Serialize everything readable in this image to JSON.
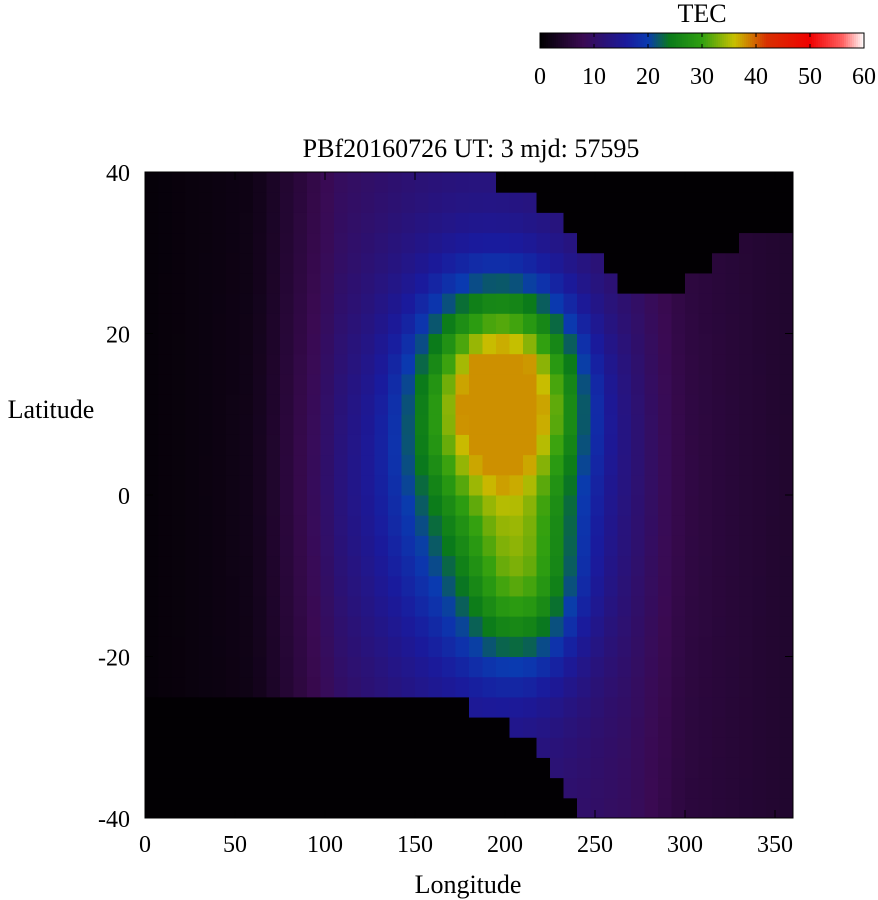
{
  "chart_data": {
    "type": "heatmap",
    "title": "PBf20160726  UT: 3  mjd: 57595",
    "xlabel": "Longitude",
    "ylabel": "Latitude",
    "xlim": [
      0,
      360
    ],
    "ylim": [
      -40,
      40
    ],
    "x_ticks": [
      "0",
      "50",
      "100",
      "150",
      "200",
      "250",
      "300",
      "350"
    ],
    "y_ticks": [
      "40",
      "20",
      "0",
      "-20",
      "-40"
    ],
    "colorbar": {
      "label": "TEC",
      "range": [
        0,
        60
      ],
      "ticks": [
        "0",
        "10",
        "20",
        "30",
        "40",
        "50",
        "60"
      ],
      "colormap": [
        {
          "v": 0,
          "color": "#000000"
        },
        {
          "v": 8,
          "color": "#3a0a52"
        },
        {
          "v": 16,
          "color": "#1a1a9c"
        },
        {
          "v": 20,
          "color": "#0a3ab0"
        },
        {
          "v": 24,
          "color": "#0a7a1a"
        },
        {
          "v": 30,
          "color": "#30a010"
        },
        {
          "v": 36,
          "color": "#c8c000"
        },
        {
          "v": 42,
          "color": "#d83000"
        },
        {
          "v": 50,
          "color": "#f00000"
        },
        {
          "v": 56,
          "color": "#ff6060"
        },
        {
          "v": 60,
          "color": "#ffffff"
        }
      ]
    },
    "cell_size_deg": {
      "lon": 7.5,
      "lat": 2.5
    },
    "features": {
      "peak": {
        "lon": 200,
        "lat": 12,
        "tec": 35
      },
      "southern_lobe": {
        "lon": 210,
        "lat": -10,
        "tec": 24
      },
      "daytime_region_lon": [
        110,
        265
      ],
      "night_background_tec": 2,
      "evening_background_tec": 6,
      "north_mask_boundary": [
        [
          70,
          40
        ],
        [
          180,
          40
        ],
        [
          210,
          37
        ],
        [
          240,
          32
        ],
        [
          265,
          26
        ],
        [
          285,
          25
        ],
        [
          305,
          27
        ],
        [
          330,
          31
        ],
        [
          360,
          33
        ]
      ],
      "south_mask_boundary": [
        [
          0,
          -24
        ],
        [
          60,
          -24
        ],
        [
          120,
          -24
        ],
        [
          160,
          -25
        ],
        [
          190,
          -27
        ],
        [
          215,
          -31
        ],
        [
          235,
          -37
        ],
        [
          245,
          -40
        ]
      ]
    }
  }
}
